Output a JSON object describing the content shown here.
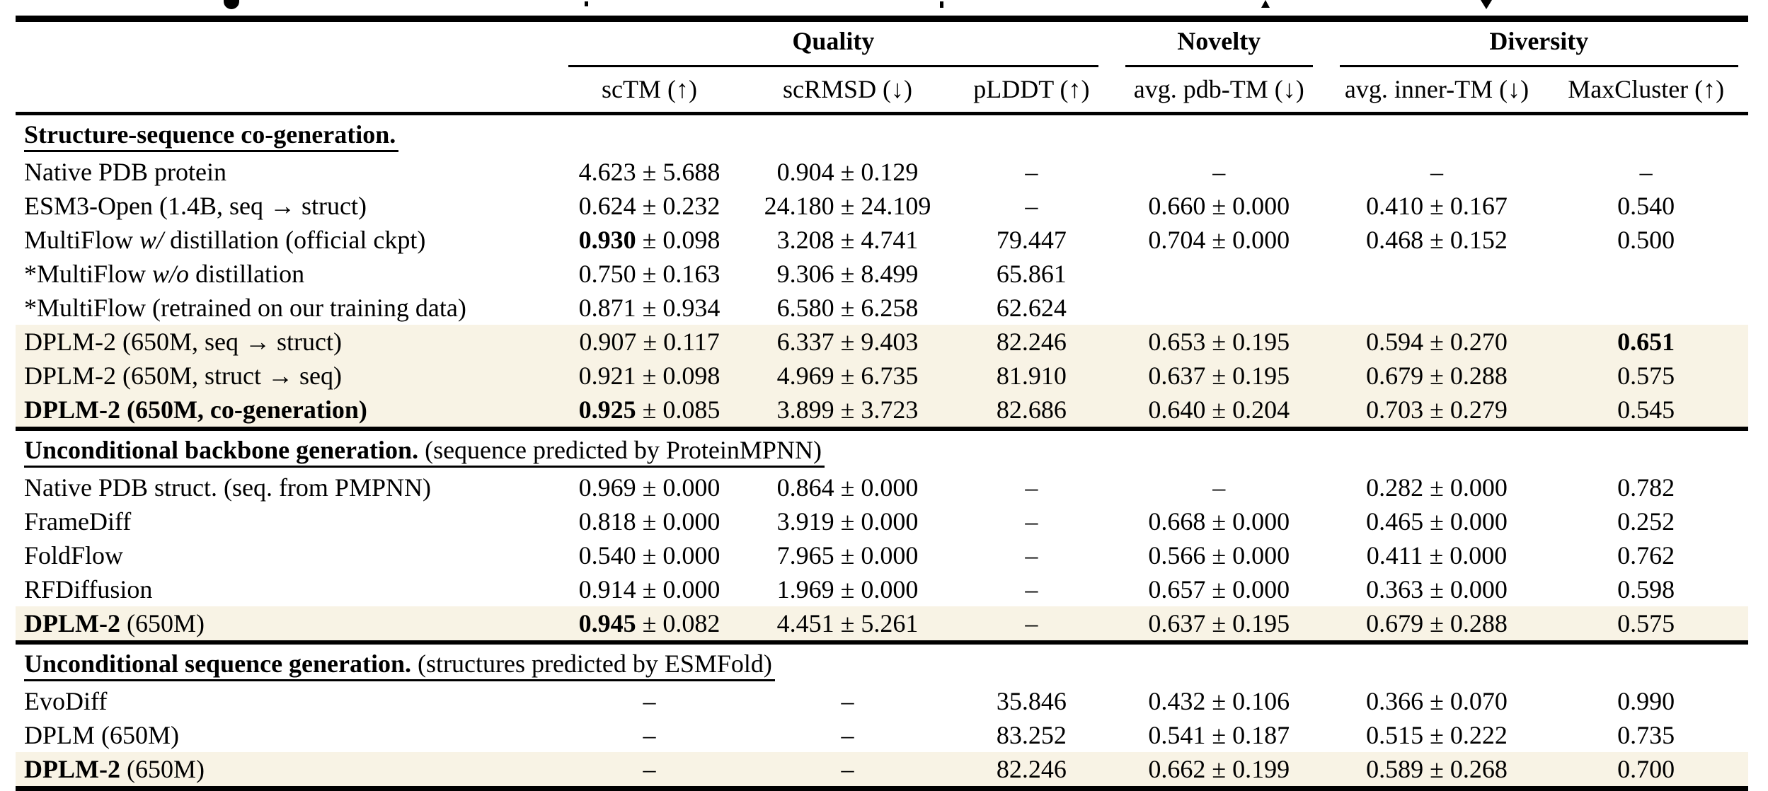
{
  "table": {
    "colors": {
      "highlight": "#f8f3e5",
      "rule": "#000000",
      "text": "#000000"
    },
    "header": {
      "groups": [
        {
          "label": "Quality",
          "span": 3
        },
        {
          "label": "Novelty",
          "span": 1
        },
        {
          "label": "Diversity",
          "span": 2
        }
      ],
      "columns": [
        "scTM (↑)",
        "scRMSD (↓)",
        "pLDDT (↑)",
        "avg. pdb-TM (↓)",
        "avg. inner-TM (↓)",
        "MaxCluster (↑)"
      ]
    },
    "sections": [
      {
        "title": [
          {
            "t": "Structure-sequence co-generation.",
            "b": true
          }
        ],
        "rows": [
          {
            "label": [
              {
                "t": "Native PDB protein"
              }
            ],
            "cells": [
              [
                {
                  "t": "4.623 ± 5.688"
                }
              ],
              [
                {
                  "t": "0.904 ± 0.129"
                }
              ],
              [
                {
                  "t": "–"
                }
              ],
              [
                {
                  "t": "–"
                }
              ],
              [
                {
                  "t": "–"
                }
              ],
              [
                {
                  "t": "–"
                }
              ]
            ]
          },
          {
            "label": [
              {
                "t": "ESM3-Open (1.4B, seq → struct)"
              }
            ],
            "cells": [
              [
                {
                  "t": "0.624 ± 0.232"
                }
              ],
              [
                {
                  "t": "24.180 ± 24.109"
                }
              ],
              [
                {
                  "t": "–"
                }
              ],
              [
                {
                  "t": "0.660 ± 0.000"
                }
              ],
              [
                {
                  "t": "0.410 ± 0.167"
                }
              ],
              [
                {
                  "t": "0.540"
                }
              ]
            ]
          },
          {
            "label": [
              {
                "t": "MultiFlow "
              },
              {
                "t": "w/",
                "i": true
              },
              {
                "t": " distillation (official ckpt)"
              }
            ],
            "cells": [
              [
                {
                  "t": "0.930",
                  "b": true
                },
                {
                  "t": " ± 0.098"
                }
              ],
              [
                {
                  "t": "3.208 ± 4.741"
                }
              ],
              [
                {
                  "t": "79.447"
                }
              ],
              [
                {
                  "t": "0.704 ± 0.000"
                }
              ],
              [
                {
                  "t": "0.468 ± 0.152"
                }
              ],
              [
                {
                  "t": "0.500"
                }
              ]
            ]
          },
          {
            "label": [
              {
                "t": "*MultiFlow "
              },
              {
                "t": "w/o",
                "i": true
              },
              {
                "t": " distillation"
              }
            ],
            "cells": [
              [
                {
                  "t": "0.750 ± 0.163"
                }
              ],
              [
                {
                  "t": "9.306 ± 8.499"
                }
              ],
              [
                {
                  "t": "65.861"
                }
              ],
              [],
              [],
              []
            ]
          },
          {
            "label": [
              {
                "t": "*MultiFlow (retrained on our training data)"
              }
            ],
            "cells": [
              [
                {
                  "t": "0.871 ± 0.934"
                }
              ],
              [
                {
                  "t": "6.580 ± 6.258"
                }
              ],
              [
                {
                  "t": "62.624"
                }
              ],
              [],
              [],
              []
            ]
          },
          {
            "highlight": true,
            "label": [
              {
                "t": "DPLM-2 (650M, seq → struct)"
              }
            ],
            "cells": [
              [
                {
                  "t": "0.907 ± 0.117"
                }
              ],
              [
                {
                  "t": "6.337 ± 9.403"
                }
              ],
              [
                {
                  "t": "82.246"
                }
              ],
              [
                {
                  "t": "0.653 ± 0.195"
                }
              ],
              [
                {
                  "t": "0.594 ± 0.270"
                }
              ],
              [
                {
                  "t": "0.651",
                  "b": true
                }
              ]
            ]
          },
          {
            "highlight": true,
            "label": [
              {
                "t": "DPLM-2 (650M, struct → seq)"
              }
            ],
            "cells": [
              [
                {
                  "t": "0.921 ± 0.098"
                }
              ],
              [
                {
                  "t": "4.969 ± 6.735"
                }
              ],
              [
                {
                  "t": "81.910"
                }
              ],
              [
                {
                  "t": "0.637 ± 0.195"
                }
              ],
              [
                {
                  "t": "0.679 ± 0.288"
                }
              ],
              [
                {
                  "t": "0.575"
                }
              ]
            ]
          },
          {
            "highlight": true,
            "label": [
              {
                "t": "DPLM-2 (650M, co-generation)",
                "b": true
              }
            ],
            "cells": [
              [
                {
                  "t": "0.925",
                  "b": true
                },
                {
                  "t": " ± 0.085"
                }
              ],
              [
                {
                  "t": "3.899 ± 3.723"
                }
              ],
              [
                {
                  "t": "82.686"
                }
              ],
              [
                {
                  "t": "0.640 ± 0.204"
                }
              ],
              [
                {
                  "t": "0.703 ± 0.279"
                }
              ],
              [
                {
                  "t": "0.545"
                }
              ]
            ]
          }
        ]
      },
      {
        "title": [
          {
            "t": "Unconditional backbone generation.",
            "b": true
          },
          {
            "t": " (sequence predicted by ProteinMPNN)"
          }
        ],
        "rows": [
          {
            "label": [
              {
                "t": "Native PDB struct. (seq. from PMPNN)"
              }
            ],
            "cells": [
              [
                {
                  "t": "0.969 ± 0.000"
                }
              ],
              [
                {
                  "t": "0.864 ± 0.000"
                }
              ],
              [
                {
                  "t": "–"
                }
              ],
              [
                {
                  "t": "–"
                }
              ],
              [
                {
                  "t": "0.282 ± 0.000"
                }
              ],
              [
                {
                  "t": "0.782"
                }
              ]
            ]
          },
          {
            "label": [
              {
                "t": "FrameDiff"
              }
            ],
            "cells": [
              [
                {
                  "t": "0.818 ± 0.000"
                }
              ],
              [
                {
                  "t": "3.919 ± 0.000"
                }
              ],
              [
                {
                  "t": "–"
                }
              ],
              [
                {
                  "t": "0.668 ± 0.000"
                }
              ],
              [
                {
                  "t": "0.465 ± 0.000"
                }
              ],
              [
                {
                  "t": "0.252"
                }
              ]
            ]
          },
          {
            "label": [
              {
                "t": "FoldFlow"
              }
            ],
            "cells": [
              [
                {
                  "t": "0.540 ± 0.000"
                }
              ],
              [
                {
                  "t": "7.965 ± 0.000"
                }
              ],
              [
                {
                  "t": "–"
                }
              ],
              [
                {
                  "t": "0.566 ± 0.000"
                }
              ],
              [
                {
                  "t": "0.411 ± 0.000"
                }
              ],
              [
                {
                  "t": "0.762"
                }
              ]
            ]
          },
          {
            "label": [
              {
                "t": "RFDiffusion"
              }
            ],
            "cells": [
              [
                {
                  "t": "0.914 ± 0.000"
                }
              ],
              [
                {
                  "t": "1.969 ± 0.000"
                }
              ],
              [
                {
                  "t": "–"
                }
              ],
              [
                {
                  "t": "0.657 ± 0.000"
                }
              ],
              [
                {
                  "t": "0.363 ± 0.000"
                }
              ],
              [
                {
                  "t": "0.598"
                }
              ]
            ]
          },
          {
            "highlight": true,
            "label": [
              {
                "t": "DPLM-2",
                "b": true
              },
              {
                "t": " (650M)"
              }
            ],
            "cells": [
              [
                {
                  "t": "0.945",
                  "b": true
                },
                {
                  "t": " ± 0.082"
                }
              ],
              [
                {
                  "t": "4.451 ± 5.261"
                }
              ],
              [
                {
                  "t": "–"
                }
              ],
              [
                {
                  "t": "0.637 ± 0.195"
                }
              ],
              [
                {
                  "t": "0.679 ± 0.288"
                }
              ],
              [
                {
                  "t": "0.575"
                }
              ]
            ]
          }
        ]
      },
      {
        "title": [
          {
            "t": "Unconditional sequence generation.",
            "b": true
          },
          {
            "t": " (structures predicted by ESMFold)"
          }
        ],
        "rows": [
          {
            "label": [
              {
                "t": "EvoDiff"
              }
            ],
            "cells": [
              [
                {
                  "t": "–"
                }
              ],
              [
                {
                  "t": "–"
                }
              ],
              [
                {
                  "t": "35.846"
                }
              ],
              [
                {
                  "t": "0.432 ± 0.106"
                }
              ],
              [
                {
                  "t": "0.366 ± 0.070"
                }
              ],
              [
                {
                  "t": "0.990"
                }
              ]
            ]
          },
          {
            "label": [
              {
                "t": "DPLM (650M)"
              }
            ],
            "cells": [
              [
                {
                  "t": "–"
                }
              ],
              [
                {
                  "t": "–"
                }
              ],
              [
                {
                  "t": "83.252"
                }
              ],
              [
                {
                  "t": "0.541 ± 0.187"
                }
              ],
              [
                {
                  "t": "0.515 ± 0.222"
                }
              ],
              [
                {
                  "t": "0.735"
                }
              ]
            ]
          },
          {
            "highlight": true,
            "label": [
              {
                "t": "DPLM-2",
                "b": true
              },
              {
                "t": " (650M)"
              }
            ],
            "cells": [
              [
                {
                  "t": "–"
                }
              ],
              [
                {
                  "t": "–"
                }
              ],
              [
                {
                  "t": "82.246"
                }
              ],
              [
                {
                  "t": "0.662 ± 0.199"
                }
              ],
              [
                {
                  "t": "0.589 ± 0.268"
                }
              ],
              [
                {
                  "t": "0.700"
                }
              ]
            ]
          }
        ]
      }
    ]
  }
}
